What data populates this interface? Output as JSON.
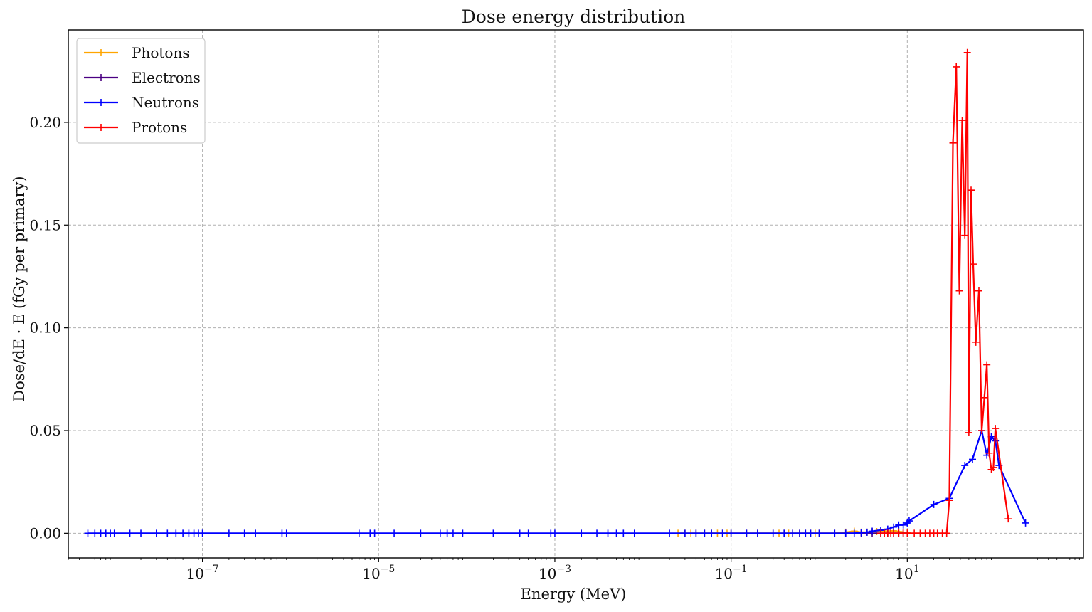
{
  "chart_data": {
    "type": "line",
    "title": "Dose energy distribution",
    "xlabel": "Energy (MeV)",
    "ylabel": "Dose/dE · E (fGy per primary)",
    "x_scale": "log",
    "xlim": [
      3e-09,
      1000
    ],
    "ylim": [
      -0.012,
      0.245
    ],
    "x_ticks": [
      {
        "value": 1e-07,
        "base": "10",
        "exp": "−7"
      },
      {
        "value": 1e-05,
        "base": "10",
        "exp": "−5"
      },
      {
        "value": 0.001,
        "base": "10",
        "exp": "−3"
      },
      {
        "value": 0.1,
        "base": "10",
        "exp": "−1"
      },
      {
        "value": 10,
        "base": "10",
        "exp": "1"
      }
    ],
    "y_ticks": [
      {
        "value": 0.0,
        "label": "0.00"
      },
      {
        "value": 0.05,
        "label": "0.05"
      },
      {
        "value": 0.1,
        "label": "0.10"
      },
      {
        "value": 0.15,
        "label": "0.15"
      },
      {
        "value": 0.2,
        "label": "0.20"
      }
    ],
    "grid": true,
    "legend_position": "top-left",
    "series": [
      {
        "name": "Photons",
        "color": "#ffa500",
        "points": [
          [
            0.025,
            0
          ],
          [
            0.03,
            0
          ],
          [
            0.035,
            0
          ],
          [
            0.04,
            0
          ],
          [
            0.05,
            0
          ],
          [
            0.06,
            0
          ],
          [
            0.07,
            0
          ],
          [
            0.08,
            0
          ],
          [
            0.09,
            0
          ],
          [
            0.1,
            0
          ],
          [
            0.15,
            0
          ],
          [
            0.2,
            0
          ],
          [
            0.3,
            0
          ],
          [
            0.35,
            0
          ],
          [
            0.4,
            0
          ],
          [
            0.45,
            0
          ],
          [
            0.5,
            0
          ],
          [
            0.6,
            0
          ],
          [
            0.7,
            0
          ],
          [
            0.8,
            0
          ],
          [
            0.9,
            0
          ],
          [
            1,
            0
          ],
          [
            1.5,
            0
          ],
          [
            2,
            0.0005
          ],
          [
            2.5,
            0.001
          ],
          [
            3,
            0.0005
          ],
          [
            3.5,
            0.0005
          ],
          [
            4,
            0.0008
          ],
          [
            4.5,
            0.0008
          ],
          [
            5,
            0.001
          ],
          [
            6,
            0.001
          ],
          [
            7,
            0.0012
          ],
          [
            8,
            0.0008
          ],
          [
            9,
            0.0005
          ],
          [
            10,
            0.0003
          ]
        ]
      },
      {
        "name": "Electrons",
        "color": "#4b0082",
        "points": [
          [
            2,
            0
          ],
          [
            3,
            0
          ],
          [
            4,
            0
          ],
          [
            5,
            0
          ],
          [
            6,
            0
          ],
          [
            7,
            0
          ],
          [
            8,
            0
          ],
          [
            9,
            0
          ],
          [
            10,
            0
          ]
        ]
      },
      {
        "name": "Neutrons",
        "color": "#0000ff",
        "points": [
          [
            5e-09,
            0
          ],
          [
            6e-09,
            0
          ],
          [
            7e-09,
            0
          ],
          [
            8e-09,
            0
          ],
          [
            9e-09,
            0
          ],
          [
            1e-08,
            0
          ],
          [
            1.5e-08,
            0
          ],
          [
            2e-08,
            0
          ],
          [
            3e-08,
            0
          ],
          [
            4e-08,
            0
          ],
          [
            5e-08,
            0
          ],
          [
            6e-08,
            0
          ],
          [
            7e-08,
            0
          ],
          [
            8e-08,
            0
          ],
          [
            9e-08,
            0
          ],
          [
            1e-07,
            0
          ],
          [
            2e-07,
            0
          ],
          [
            3e-07,
            0
          ],
          [
            4e-07,
            0
          ],
          [
            8e-07,
            0
          ],
          [
            9e-07,
            0
          ],
          [
            6e-06,
            0
          ],
          [
            8e-06,
            0
          ],
          [
            9e-06,
            0
          ],
          [
            1.5e-05,
            0
          ],
          [
            3e-05,
            0
          ],
          [
            5e-05,
            0
          ],
          [
            6e-05,
            0
          ],
          [
            7e-05,
            0
          ],
          [
            9e-05,
            0
          ],
          [
            0.0002,
            0
          ],
          [
            0.0004,
            0
          ],
          [
            0.0005,
            0
          ],
          [
            0.0009,
            0
          ],
          [
            0.001,
            0
          ],
          [
            0.002,
            0
          ],
          [
            0.003,
            0
          ],
          [
            0.004,
            0
          ],
          [
            0.005,
            0
          ],
          [
            0.006,
            0
          ],
          [
            0.008,
            0
          ],
          [
            0.02,
            0
          ],
          [
            0.03,
            0
          ],
          [
            0.04,
            0
          ],
          [
            0.05,
            0
          ],
          [
            0.06,
            0
          ],
          [
            0.08,
            0
          ],
          [
            0.1,
            0
          ],
          [
            0.15,
            0
          ],
          [
            0.2,
            0
          ],
          [
            0.3,
            0
          ],
          [
            0.4,
            0
          ],
          [
            0.5,
            0
          ],
          [
            0.6,
            0
          ],
          [
            0.7,
            0
          ],
          [
            0.8,
            0
          ],
          [
            1,
            0
          ],
          [
            1.5,
            0
          ],
          [
            2,
            0
          ],
          [
            2.5,
            0
          ],
          [
            3,
            0.0003
          ],
          [
            3.5,
            0.0005
          ],
          [
            4,
            0.001
          ],
          [
            5,
            0.0015
          ],
          [
            6,
            0.002
          ],
          [
            7,
            0.003
          ],
          [
            8,
            0.004
          ],
          [
            9,
            0.004
          ],
          [
            10,
            0.005
          ],
          [
            10.5,
            0.006
          ],
          [
            20,
            0.014
          ],
          [
            30,
            0.017
          ],
          [
            45,
            0.033
          ],
          [
            55,
            0.036
          ],
          [
            70,
            0.05
          ],
          [
            80,
            0.038
          ],
          [
            90,
            0.047
          ],
          [
            100,
            0.045
          ],
          [
            110,
            0.033
          ],
          [
            220,
            0.005
          ]
        ]
      },
      {
        "name": "Protons",
        "color": "#ff0000",
        "points": [
          [
            5,
            0
          ],
          [
            5.5,
            0
          ],
          [
            6,
            0
          ],
          [
            6.5,
            0
          ],
          [
            7,
            0
          ],
          [
            8,
            0
          ],
          [
            9,
            0
          ],
          [
            10,
            0
          ],
          [
            12,
            0
          ],
          [
            14,
            0
          ],
          [
            16,
            0
          ],
          [
            18,
            0
          ],
          [
            20,
            0
          ],
          [
            22,
            0
          ],
          [
            25,
            0
          ],
          [
            28,
            0
          ],
          [
            30,
            0.016
          ],
          [
            33,
            0.19
          ],
          [
            36,
            0.227
          ],
          [
            39,
            0.118
          ],
          [
            42,
            0.201
          ],
          [
            45,
            0.145
          ],
          [
            48,
            0.234
          ],
          [
            50,
            0.049
          ],
          [
            53,
            0.167
          ],
          [
            56,
            0.131
          ],
          [
            60,
            0.093
          ],
          [
            65,
            0.118
          ],
          [
            70,
            0.05
          ],
          [
            75,
            0.066
          ],
          [
            80,
            0.082
          ],
          [
            85,
            0.039
          ],
          [
            90,
            0.031
          ],
          [
            95,
            0.032
          ],
          [
            100,
            0.051
          ],
          [
            140,
            0.007
          ]
        ]
      }
    ]
  }
}
